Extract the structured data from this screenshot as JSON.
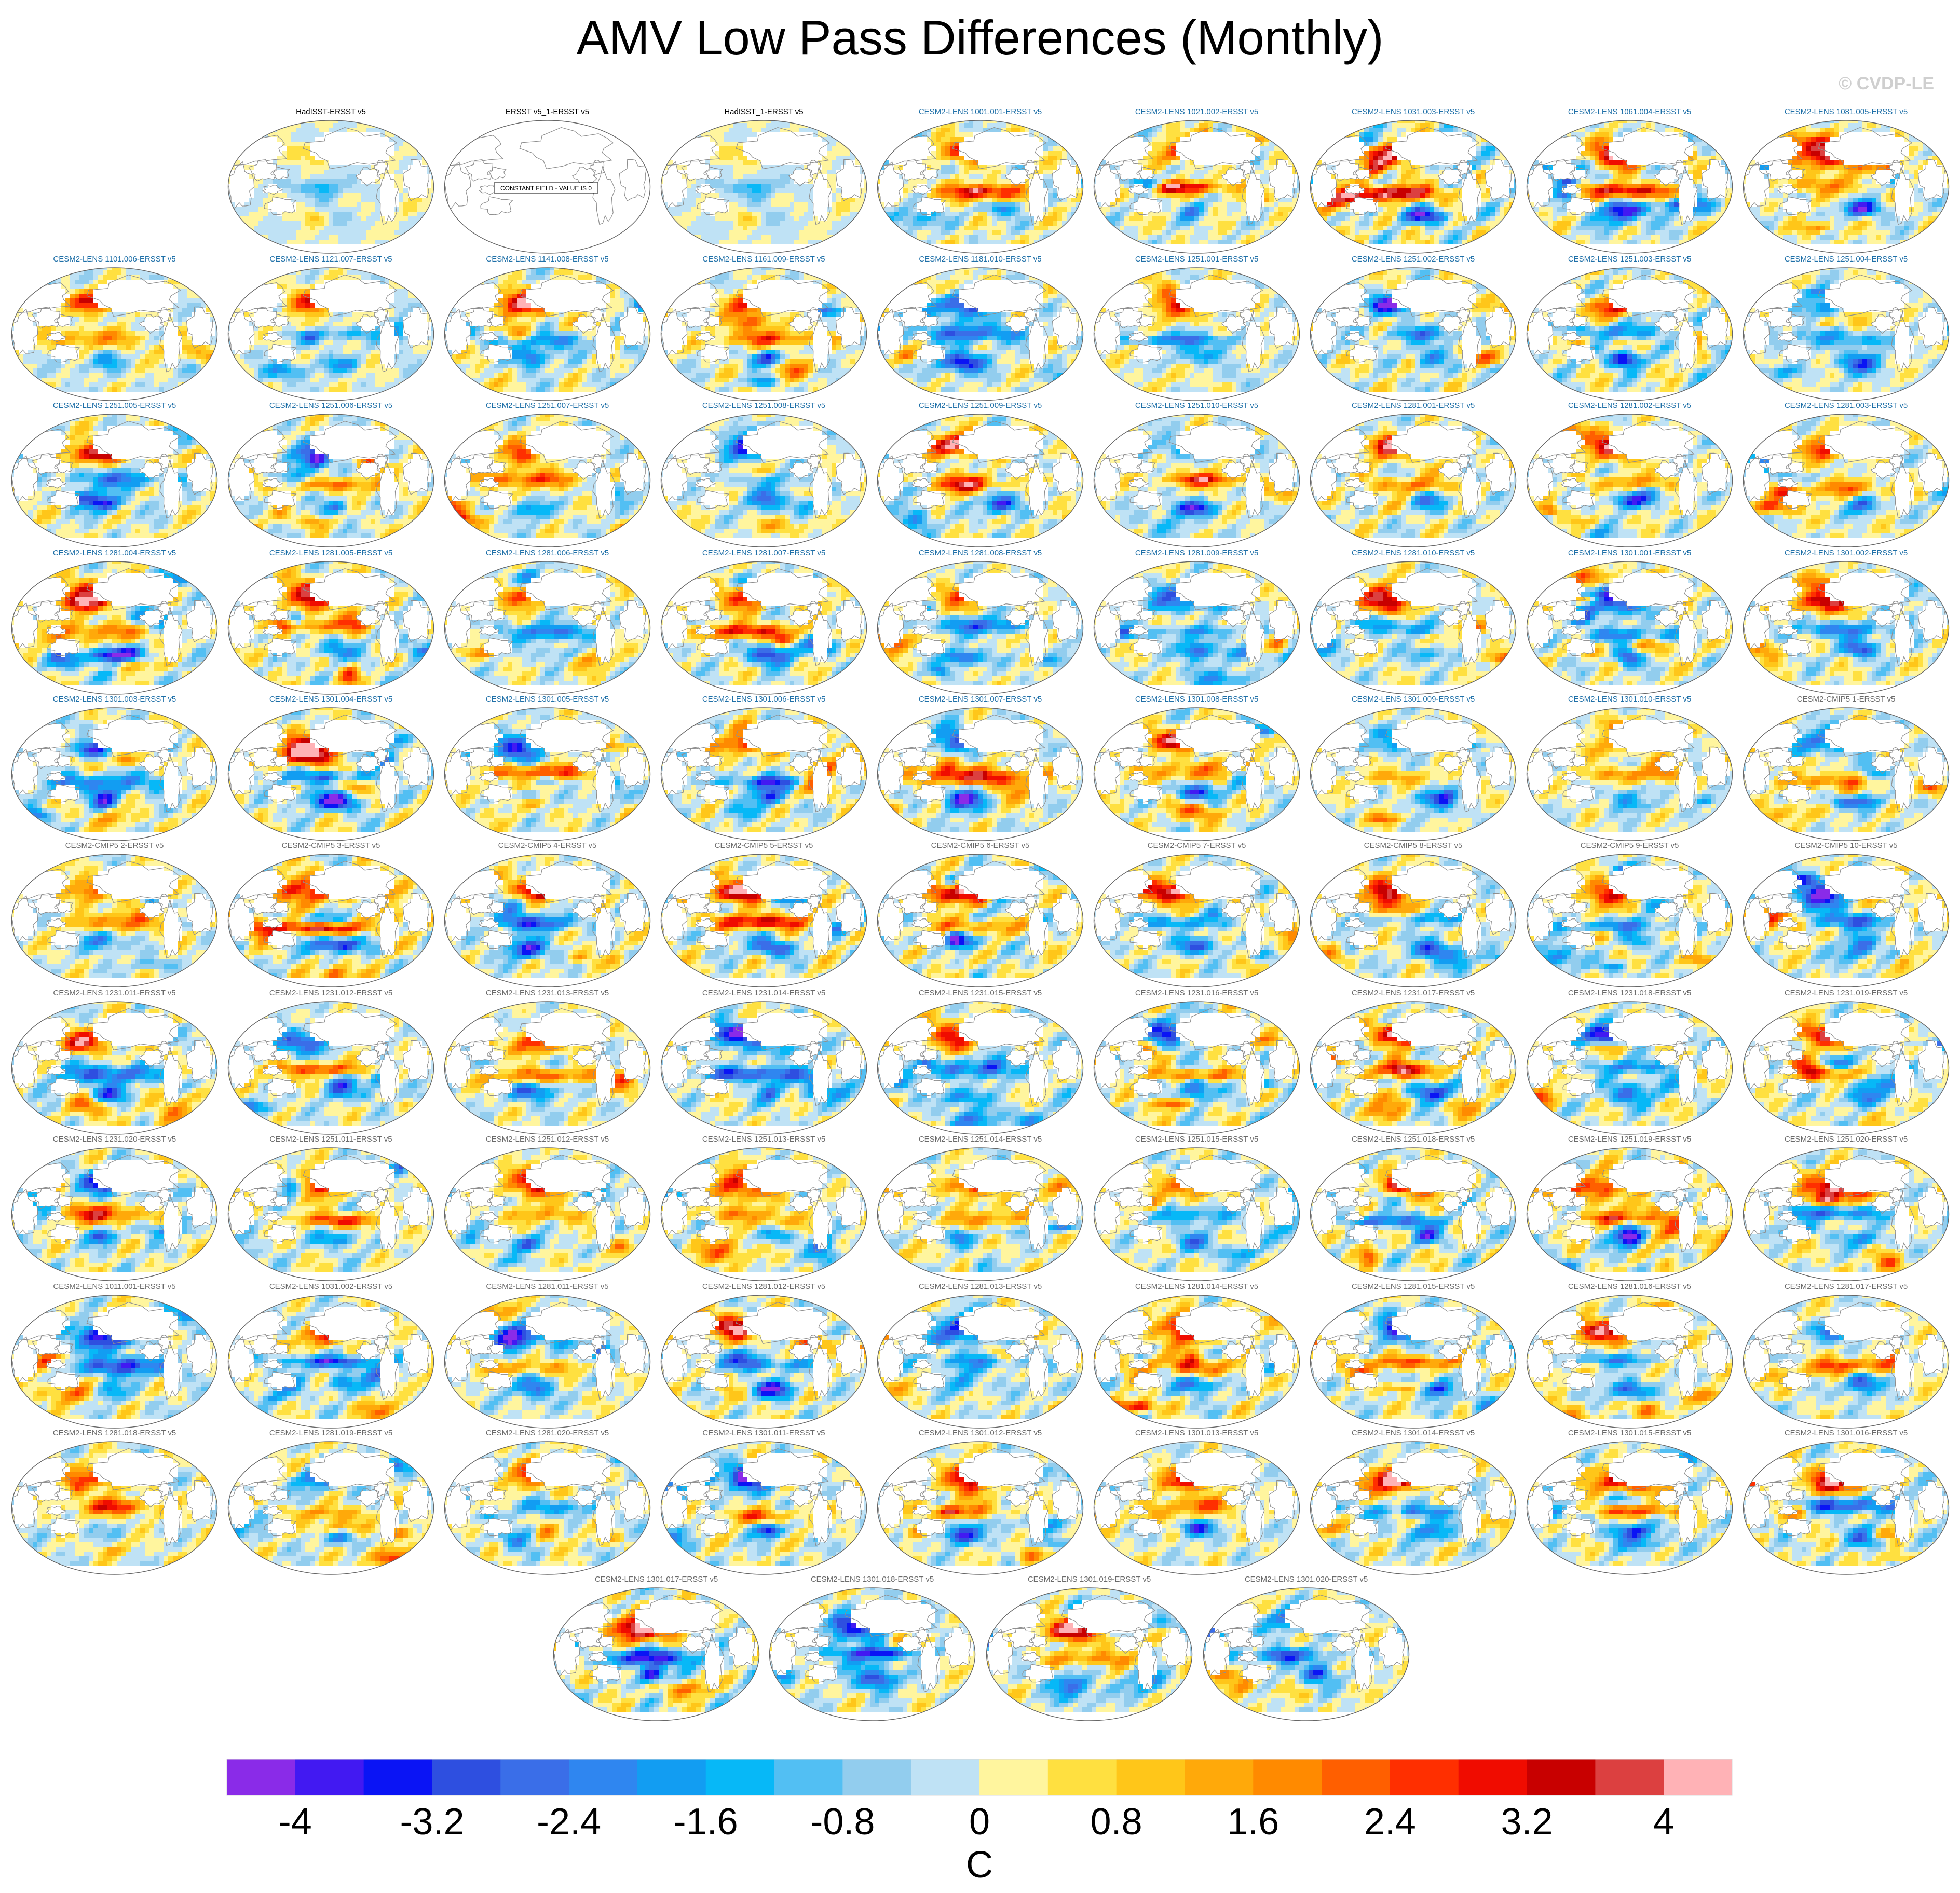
{
  "figure": {
    "title": "AMV Low Pass Differences (Monthly)",
    "credit": "© CVDP-LE"
  },
  "panels": [
    {
      "label": "HadISST-ERSST v5",
      "style": "black",
      "pattern": 1,
      "amp": 0.35
    },
    {
      "label": "ERSST v5_1-ERSST v5",
      "style": "black",
      "pattern": 0,
      "amp": 0,
      "note": "CONSTANT FIELD - VALUE IS 0"
    },
    {
      "label": "HadISST_1-ERSST v5",
      "style": "black",
      "pattern": 1,
      "amp": 0.35
    },
    {
      "label": "CESM2-LENS 1001.001-ERSST v5",
      "style": "blue",
      "pattern": 2,
      "amp": 1
    },
    {
      "label": "CESM2-LENS 1021.002-ERSST v5",
      "style": "blue",
      "pattern": 3,
      "amp": 1
    },
    {
      "label": "CESM2-LENS 1031.003-ERSST v5",
      "style": "blue",
      "pattern": 4,
      "amp": 1.3
    },
    {
      "label": "CESM2-LENS 1061.004-ERSST v5",
      "style": "blue",
      "pattern": 5,
      "amp": 1.1
    },
    {
      "label": "CESM2-LENS 1081.005-ERSST v5",
      "style": "blue",
      "pattern": 6,
      "amp": 1
    },
    {
      "label": "CESM2-LENS 1101.006-ERSST v5",
      "style": "blue",
      "pattern": 7,
      "amp": 0.8
    },
    {
      "label": "CESM2-LENS 1121.007-ERSST v5",
      "style": "blue",
      "pattern": 8,
      "amp": 0.7
    },
    {
      "label": "CESM2-LENS 1141.008-ERSST v5",
      "style": "blue",
      "pattern": 9,
      "amp": 1.1
    },
    {
      "label": "CESM2-LENS 1161.009-ERSST v5",
      "style": "blue",
      "pattern": 10,
      "amp": 0.9
    },
    {
      "label": "CESM2-LENS 1181.010-ERSST v5",
      "style": "blue",
      "pattern": 11,
      "amp": 1
    },
    {
      "label": "CESM2-LENS 1251.001-ERSST v5",
      "style": "blue",
      "pattern": 12,
      "amp": 0.8
    },
    {
      "label": "CESM2-LENS 1251.002-ERSST v5",
      "style": "blue",
      "pattern": 13,
      "amp": 1.1
    },
    {
      "label": "CESM2-LENS 1251.003-ERSST v5",
      "style": "blue",
      "pattern": 14,
      "amp": 1.2
    },
    {
      "label": "CESM2-LENS 1251.004-ERSST v5",
      "style": "blue",
      "pattern": 15,
      "amp": 0.8
    },
    {
      "label": "CESM2-LENS 1251.005-ERSST v5",
      "style": "blue",
      "pattern": 16,
      "amp": 1
    },
    {
      "label": "CESM2-LENS 1251.006-ERSST v5",
      "style": "blue",
      "pattern": 17,
      "amp": 1
    },
    {
      "label": "CESM2-LENS 1251.007-ERSST v5",
      "style": "blue",
      "pattern": 18,
      "amp": 0.9
    },
    {
      "label": "CESM2-LENS 1251.008-ERSST v5",
      "style": "blue",
      "pattern": 19,
      "amp": 0.8
    },
    {
      "label": "CESM2-LENS 1251.009-ERSST v5",
      "style": "blue",
      "pattern": 20,
      "amp": 1.1
    },
    {
      "label": "CESM2-LENS 1251.010-ERSST v5",
      "style": "blue",
      "pattern": 21,
      "amp": 0.9
    },
    {
      "label": "CESM2-LENS 1281.001-ERSST v5",
      "style": "blue",
      "pattern": 22,
      "amp": 1.1
    },
    {
      "label": "CESM2-LENS 1281.002-ERSST v5",
      "style": "blue",
      "pattern": 23,
      "amp": 1
    },
    {
      "label": "CESM2-LENS 1281.003-ERSST v5",
      "style": "blue",
      "pattern": 24,
      "amp": 0.9
    },
    {
      "label": "CESM2-LENS 1281.004-ERSST v5",
      "style": "blue",
      "pattern": 25,
      "amp": 1
    },
    {
      "label": "CESM2-LENS 1281.005-ERSST v5",
      "style": "blue",
      "pattern": 26,
      "amp": 1.1
    },
    {
      "label": "CESM2-LENS 1281.006-ERSST v5",
      "style": "blue",
      "pattern": 27,
      "amp": 0.9
    },
    {
      "label": "CESM2-LENS 1281.007-ERSST v5",
      "style": "blue",
      "pattern": 28,
      "amp": 1.1
    },
    {
      "label": "CESM2-LENS 1281.008-ERSST v5",
      "style": "blue",
      "pattern": 29,
      "amp": 0.9
    },
    {
      "label": "CESM2-LENS 1281.009-ERSST v5",
      "style": "blue",
      "pattern": 30,
      "amp": 0.9
    },
    {
      "label": "CESM2-LENS 1281.010-ERSST v5",
      "style": "blue",
      "pattern": 31,
      "amp": 0.9
    },
    {
      "label": "CESM2-LENS 1301.001-ERSST v5",
      "style": "blue",
      "pattern": 32,
      "amp": 1.1
    },
    {
      "label": "CESM2-LENS 1301.002-ERSST v5",
      "style": "blue",
      "pattern": 33,
      "amp": 1
    },
    {
      "label": "CESM2-LENS 1301.003-ERSST v5",
      "style": "blue",
      "pattern": 34,
      "amp": 1
    },
    {
      "label": "CESM2-LENS 1301.004-ERSST v5",
      "style": "blue",
      "pattern": 35,
      "amp": 1.1
    },
    {
      "label": "CESM2-LENS 1301.005-ERSST v5",
      "style": "blue",
      "pattern": 36,
      "amp": 0.9
    },
    {
      "label": "CESM2-LENS 1301.006-ERSST v5",
      "style": "blue",
      "pattern": 37,
      "amp": 1.1
    },
    {
      "label": "CESM2-LENS 1301.007-ERSST v5",
      "style": "blue",
      "pattern": 38,
      "amp": 1
    },
    {
      "label": "CESM2-LENS 1301.008-ERSST v5",
      "style": "blue",
      "pattern": 39,
      "amp": 1.1
    },
    {
      "label": "CESM2-LENS 1301.009-ERSST v5",
      "style": "blue",
      "pattern": 40,
      "amp": 0.8
    },
    {
      "label": "CESM2-LENS 1301.010-ERSST v5",
      "style": "blue",
      "pattern": 41,
      "amp": 0.8
    },
    {
      "label": "CESM2-CMIP5 1-ERSST v5",
      "style": "gray",
      "pattern": 42,
      "amp": 1
    },
    {
      "label": "CESM2-CMIP5 2-ERSST v5",
      "style": "gray",
      "pattern": 43,
      "amp": 0.9
    },
    {
      "label": "CESM2-CMIP5 3-ERSST v5",
      "style": "gray",
      "pattern": 44,
      "amp": 1.3
    },
    {
      "label": "CESM2-CMIP5 4-ERSST v5",
      "style": "gray",
      "pattern": 45,
      "amp": 1
    },
    {
      "label": "CESM2-CMIP5 5-ERSST v5",
      "style": "gray",
      "pattern": 46,
      "amp": 1.2
    },
    {
      "label": "CESM2-CMIP5 6-ERSST v5",
      "style": "gray",
      "pattern": 47,
      "amp": 1.3
    },
    {
      "label": "CESM2-CMIP5 7-ERSST v5",
      "style": "gray",
      "pattern": 48,
      "amp": 1
    },
    {
      "label": "CESM2-CMIP5 8-ERSST v5",
      "style": "gray",
      "pattern": 49,
      "amp": 1
    },
    {
      "label": "CESM2-CMIP5 9-ERSST v5",
      "style": "gray",
      "pattern": 50,
      "amp": 1
    },
    {
      "label": "CESM2-CMIP5 10-ERSST v5",
      "style": "gray",
      "pattern": 51,
      "amp": 1.1
    },
    {
      "label": "CESM2-LENS 1231.011-ERSST v5",
      "style": "gray",
      "pattern": 52,
      "amp": 1.1
    },
    {
      "label": "CESM2-LENS 1231.012-ERSST v5",
      "style": "gray",
      "pattern": 53,
      "amp": 0.9
    },
    {
      "label": "CESM2-LENS 1231.013-ERSST v5",
      "style": "gray",
      "pattern": 54,
      "amp": 0.9
    },
    {
      "label": "CESM2-LENS 1231.014-ERSST v5",
      "style": "gray",
      "pattern": 55,
      "amp": 1
    },
    {
      "label": "CESM2-LENS 1231.015-ERSST v5",
      "style": "gray",
      "pattern": 56,
      "amp": 1
    },
    {
      "label": "CESM2-LENS 1231.016-ERSST v5",
      "style": "gray",
      "pattern": 57,
      "amp": 1.2
    },
    {
      "label": "CESM2-LENS 1231.017-ERSST v5",
      "style": "gray",
      "pattern": 58,
      "amp": 1.2
    },
    {
      "label": "CESM2-LENS 1231.018-ERSST v5",
      "style": "gray",
      "pattern": 59,
      "amp": 1.1
    },
    {
      "label": "CESM2-LENS 1231.019-ERSST v5",
      "style": "gray",
      "pattern": 60,
      "amp": 1
    },
    {
      "label": "CESM2-LENS 1231.020-ERSST v5",
      "style": "gray",
      "pattern": 61,
      "amp": 1.1
    },
    {
      "label": "CESM2-LENS 1251.011-ERSST v5",
      "style": "gray",
      "pattern": 62,
      "amp": 1
    },
    {
      "label": "CESM2-LENS 1251.012-ERSST v5",
      "style": "gray",
      "pattern": 63,
      "amp": 0.9
    },
    {
      "label": "CESM2-LENS 1251.013-ERSST v5",
      "style": "gray",
      "pattern": 64,
      "amp": 1
    },
    {
      "label": "CESM2-LENS 1251.014-ERSST v5",
      "style": "gray",
      "pattern": 65,
      "amp": 0.9
    },
    {
      "label": "CESM2-LENS 1251.015-ERSST v5",
      "style": "gray",
      "pattern": 66,
      "amp": 0.9
    },
    {
      "label": "CESM2-LENS 1251.018-ERSST v5",
      "style": "gray",
      "pattern": 67,
      "amp": 1.2
    },
    {
      "label": "CESM2-LENS 1251.019-ERSST v5",
      "style": "gray",
      "pattern": 68,
      "amp": 1.2
    },
    {
      "label": "CESM2-LENS 1251.020-ERSST v5",
      "style": "gray",
      "pattern": 69,
      "amp": 1
    },
    {
      "label": "CESM2-LENS 1011.001-ERSST v5",
      "style": "gray",
      "pattern": 70,
      "amp": 1
    },
    {
      "label": "CESM2-LENS 1031.002-ERSST v5",
      "style": "gray",
      "pattern": 71,
      "amp": 1
    },
    {
      "label": "CESM2-LENS 1281.011-ERSST v5",
      "style": "gray",
      "pattern": 72,
      "amp": 0.9
    },
    {
      "label": "CESM2-LENS 1281.012-ERSST v5",
      "style": "gray",
      "pattern": 73,
      "amp": 1.1
    },
    {
      "label": "CESM2-LENS 1281.013-ERSST v5",
      "style": "gray",
      "pattern": 74,
      "amp": 1
    },
    {
      "label": "CESM2-LENS 1281.014-ERSST v5",
      "style": "gray",
      "pattern": 75,
      "amp": 1.2
    },
    {
      "label": "CESM2-LENS 1281.015-ERSST v5",
      "style": "gray",
      "pattern": 76,
      "amp": 1
    },
    {
      "label": "CESM2-LENS 1281.016-ERSST v5",
      "style": "gray",
      "pattern": 77,
      "amp": 0.9
    },
    {
      "label": "CESM2-LENS 1281.017-ERSST v5",
      "style": "gray",
      "pattern": 78,
      "amp": 0.9
    },
    {
      "label": "CESM2-LENS 1281.018-ERSST v5",
      "style": "gray",
      "pattern": 79,
      "amp": 0.9
    },
    {
      "label": "CESM2-LENS 1281.019-ERSST v5",
      "style": "gray",
      "pattern": 80,
      "amp": 1
    },
    {
      "label": "CESM2-LENS 1281.020-ERSST v5",
      "style": "gray",
      "pattern": 81,
      "amp": 1
    },
    {
      "label": "CESM2-LENS 1301.011-ERSST v5",
      "style": "gray",
      "pattern": 82,
      "amp": 1.1
    },
    {
      "label": "CESM2-LENS 1301.012-ERSST v5",
      "style": "gray",
      "pattern": 83,
      "amp": 0.9
    },
    {
      "label": "CESM2-LENS 1301.013-ERSST v5",
      "style": "gray",
      "pattern": 84,
      "amp": 0.9
    },
    {
      "label": "CESM2-LENS 1301.014-ERSST v5",
      "style": "gray",
      "pattern": 85,
      "amp": 1
    },
    {
      "label": "CESM2-LENS 1301.015-ERSST v5",
      "style": "gray",
      "pattern": 86,
      "amp": 1
    },
    {
      "label": "CESM2-LENS 1301.016-ERSST v5",
      "style": "gray",
      "pattern": 87,
      "amp": 1.1
    },
    {
      "label": "CESM2-LENS 1301.017-ERSST v5",
      "style": "gray",
      "pattern": 88,
      "amp": 1.2
    },
    {
      "label": "CESM2-LENS 1301.018-ERSST v5",
      "style": "gray",
      "pattern": 89,
      "amp": 0.9
    },
    {
      "label": "CESM2-LENS 1301.019-ERSST v5",
      "style": "gray",
      "pattern": 90,
      "amp": 1
    },
    {
      "label": "CESM2-LENS 1301.020-ERSST v5",
      "style": "gray",
      "pattern": 91,
      "amp": 1
    }
  ],
  "colorbar": {
    "units": "C",
    "min": -4.4,
    "max": 4.4,
    "step": 0.4,
    "tick_labels": [
      "-4",
      "-3.2",
      "-2.4",
      "-1.6",
      "-0.8",
      "0",
      "0.8",
      "1.6",
      "2.4",
      "3.2",
      "4"
    ],
    "tick_values": [
      -4,
      -3.2,
      -2.4,
      -1.6,
      -0.8,
      0,
      0.8,
      1.6,
      2.4,
      3.2,
      4
    ],
    "colors": [
      "#8a2be8",
      "#4219f2",
      "#0a14f5",
      "#2e4fe0",
      "#3a6ee8",
      "#2f86f0",
      "#129df2",
      "#07b8f7",
      "#52bff3",
      "#92cdee",
      "#bfe2f5",
      "#fff59e",
      "#ffe040",
      "#ffc619",
      "#ffa90a",
      "#ff8a00",
      "#ff5f00",
      "#ff2f00",
      "#f00c00",
      "#c80000",
      "#dc4040",
      "#ffb2b6"
    ]
  },
  "style": {
    "map_outline": "#666666",
    "coast": "#8f8f8f",
    "land_fill": "#ffffff",
    "label_blue": "#1f70a8",
    "label_gray": "#6a6a6a"
  }
}
